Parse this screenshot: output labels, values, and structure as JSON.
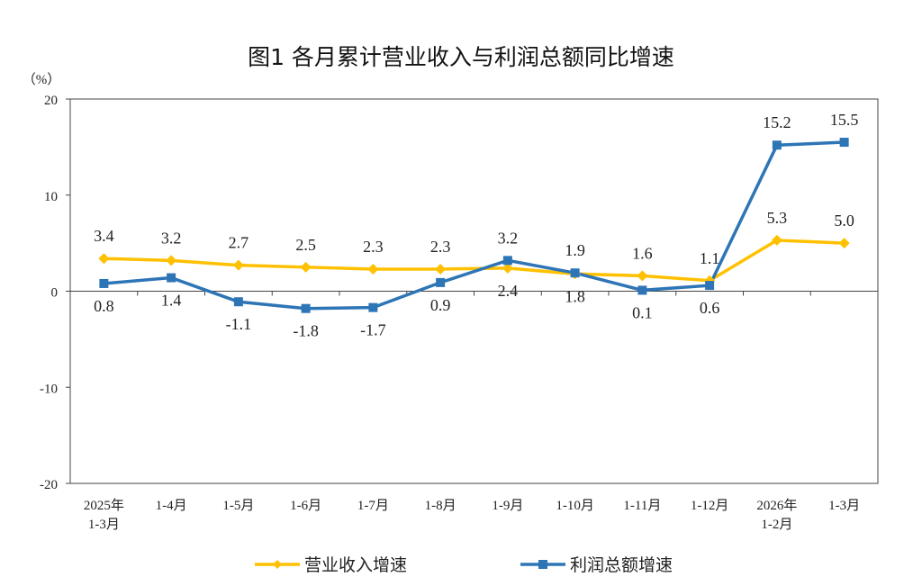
{
  "chart_data": {
    "type": "line",
    "title": "图1  各月累计营业收入与利润总额同比增速",
    "ylabel": "（%）",
    "xlabel": "",
    "ylim": [
      -20,
      20
    ],
    "yticks": [
      "20",
      "10",
      "0",
      "-10",
      "-20"
    ],
    "categories": [
      [
        "2025年",
        "1-3月"
      ],
      [
        "1-4月"
      ],
      [
        "1-5月"
      ],
      [
        "1-6月"
      ],
      [
        "1-7月"
      ],
      [
        "1-8月"
      ],
      [
        "1-9月"
      ],
      [
        "1-10月"
      ],
      [
        "1-11月"
      ],
      [
        "1-12月"
      ],
      [
        "2026年",
        "1-2月"
      ],
      [
        "1-3月"
      ]
    ],
    "series": [
      {
        "name": "营业收入增速",
        "color": "#FFC000",
        "marker": "diamond",
        "values": [
          3.4,
          3.2,
          2.7,
          2.5,
          2.3,
          2.3,
          2.4,
          1.8,
          1.6,
          1.1,
          5.3,
          5.0
        ],
        "labels": [
          "3.4",
          "3.2",
          "2.7",
          "2.5",
          "2.3",
          "2.3",
          "2.4",
          "1.8",
          "1.6",
          "1.1",
          "5.3",
          "5.0"
        ]
      },
      {
        "name": "利润总额增速",
        "color": "#2E75B6",
        "marker": "square",
        "values": [
          0.8,
          1.4,
          -1.1,
          -1.8,
          -1.7,
          0.9,
          3.2,
          1.9,
          0.1,
          0.6,
          15.2,
          15.5
        ],
        "labels": [
          "0.8",
          "1.4",
          "-1.1",
          "-1.8",
          "-1.7",
          "0.9",
          "3.2",
          "1.9",
          "0.1",
          "0.6",
          "15.2",
          "15.5"
        ]
      }
    ],
    "grid": false,
    "legend": "bottom"
  }
}
